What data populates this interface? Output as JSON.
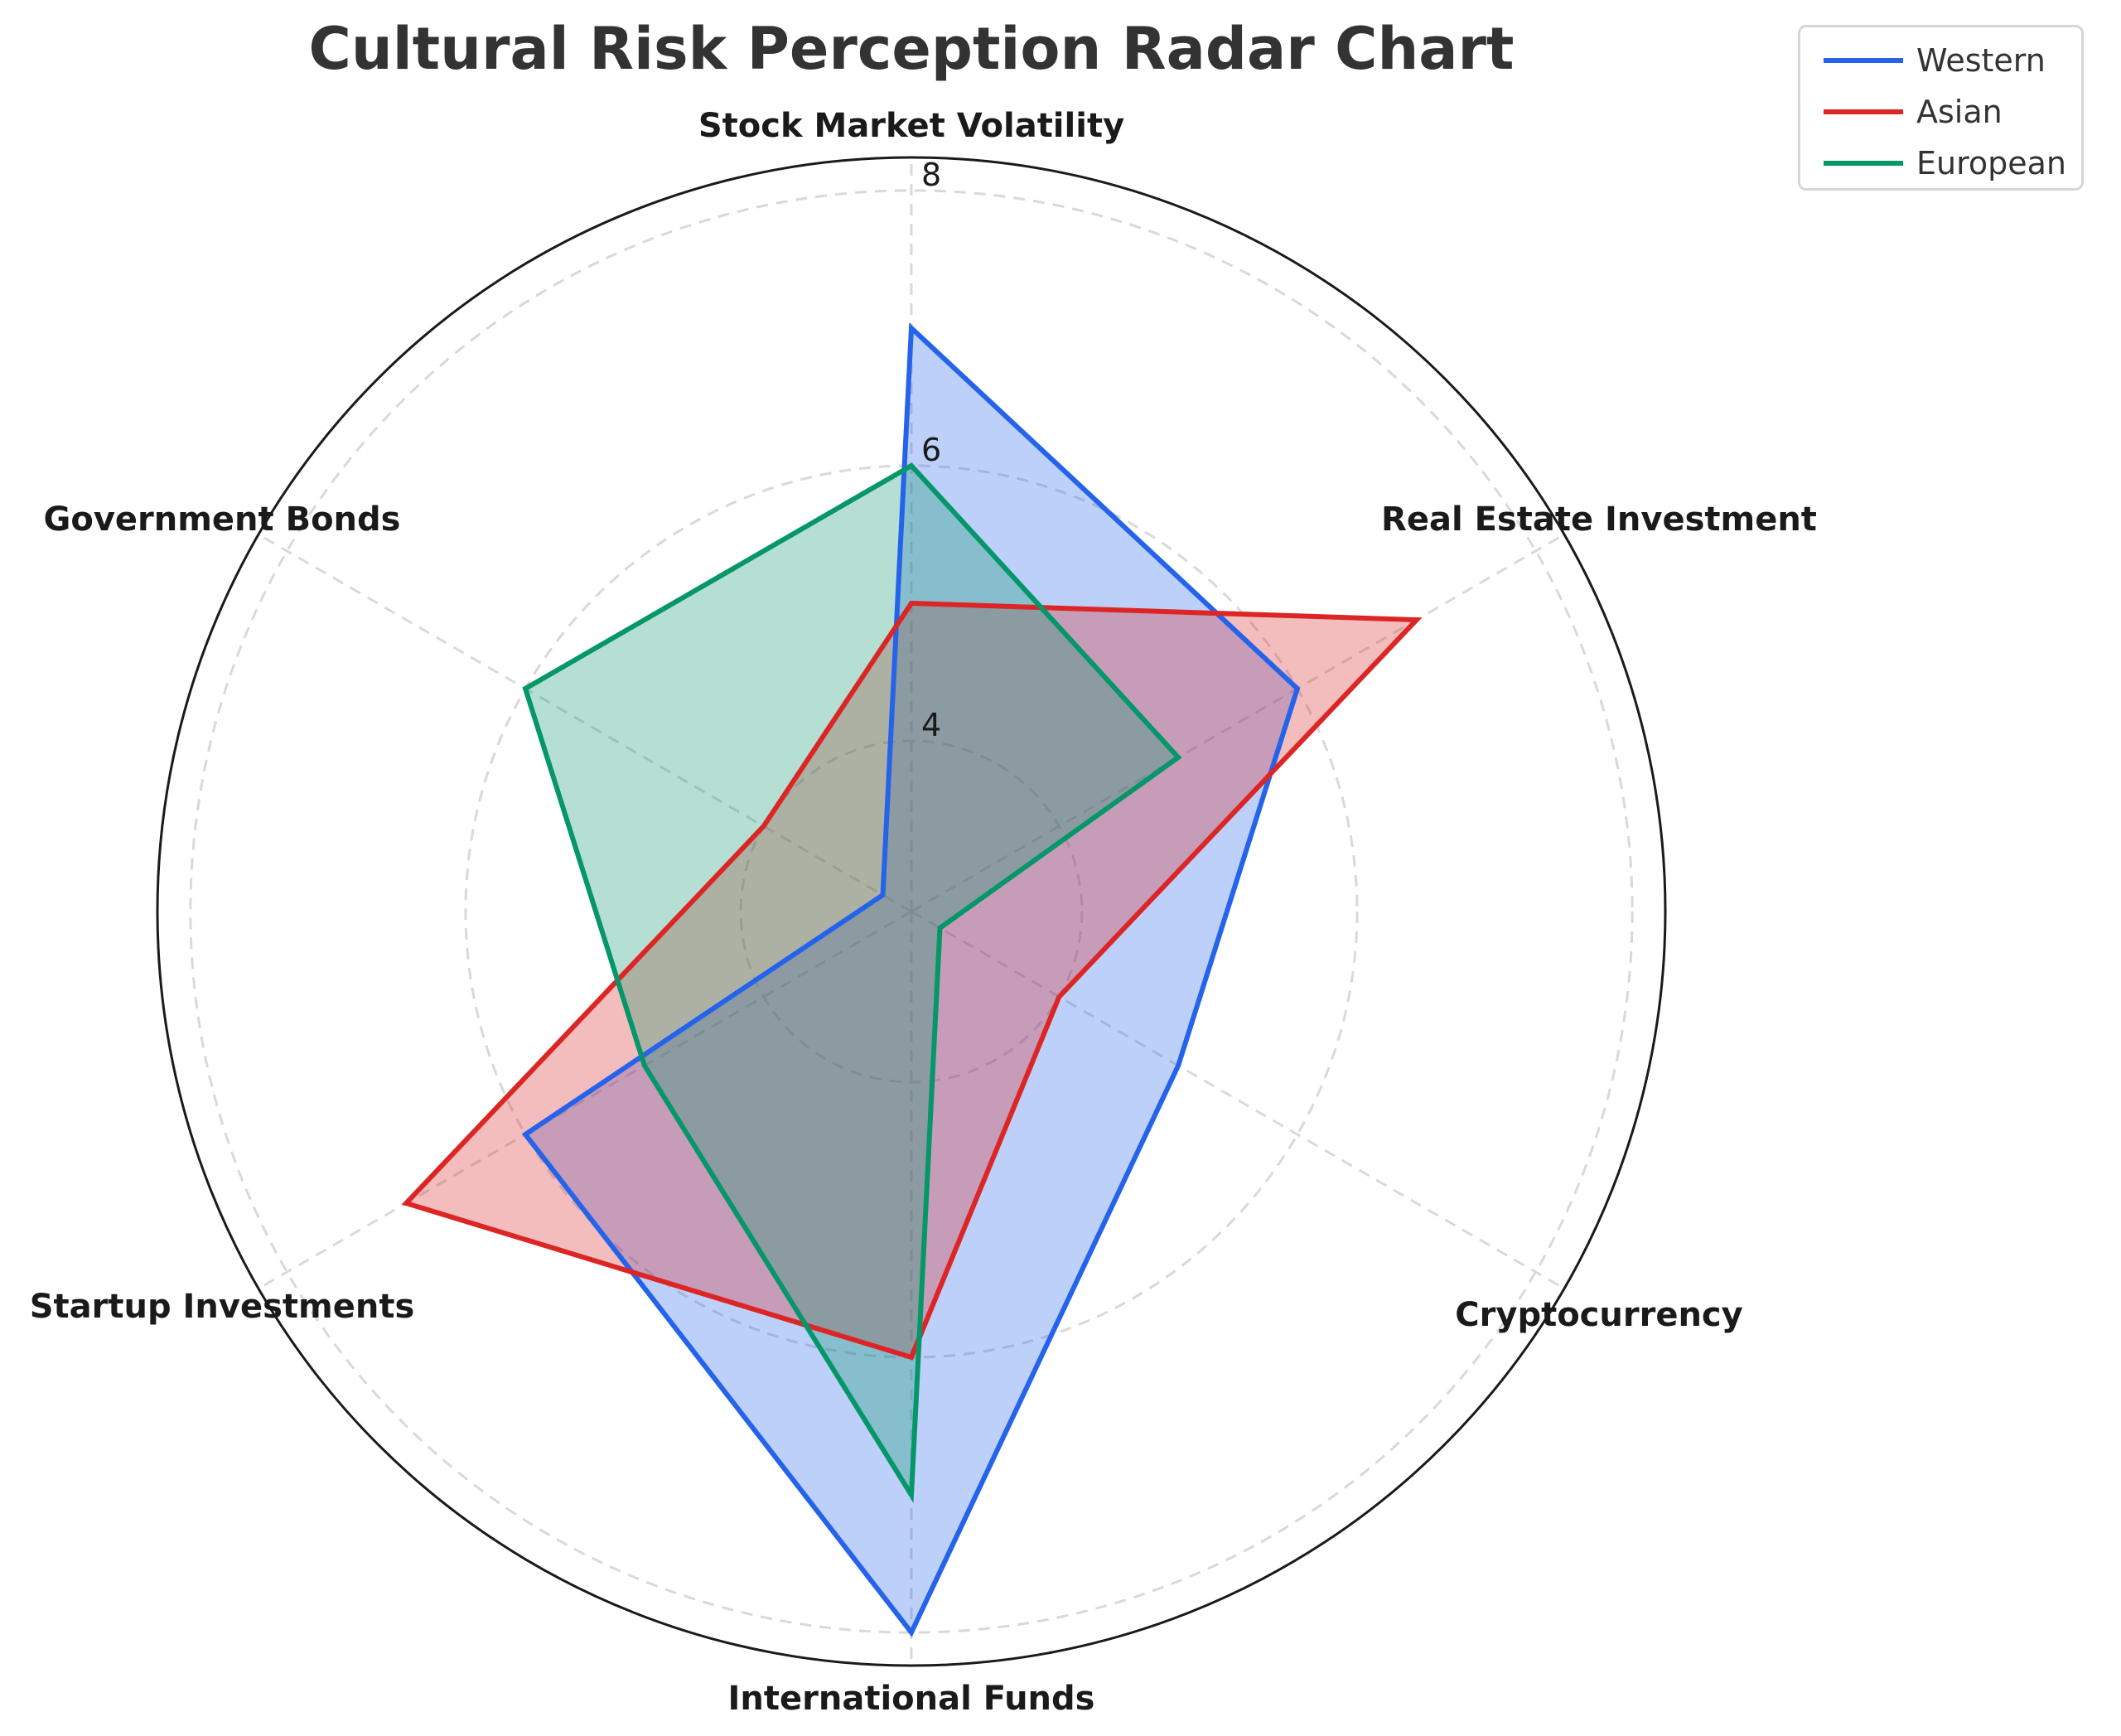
{
  "title": "Cultural Risk Perception Radar Chart",
  "legend": {
    "items": [
      {
        "label": "Western",
        "color": "#2563eb"
      },
      {
        "label": "Asian",
        "color": "#dc2626"
      },
      {
        "label": "European",
        "color": "#059669"
      }
    ]
  },
  "radial_ticks": [
    "4",
    "6",
    "8"
  ],
  "chart_data": {
    "type": "radar",
    "title": "Cultural Risk Perception Radar Chart",
    "categories": [
      "Stock Market Volatility",
      "Real Estate Investment",
      "Cryptocurrency",
      "International Funds",
      "Startup Investments",
      "Government Bonds"
    ],
    "series": [
      {
        "name": "Western",
        "color": "#2563eb",
        "values": [
          7,
          6,
          5,
          8,
          6,
          3
        ]
      },
      {
        "name": "Asian",
        "color": "#dc2626",
        "values": [
          5,
          7,
          4,
          6,
          7,
          4
        ]
      },
      {
        "name": "European",
        "color": "#059669",
        "values": [
          6,
          5,
          3,
          7,
          5,
          6
        ]
      }
    ],
    "radial_ticks": [
      4,
      6,
      8
    ],
    "rlim": [
      2.76,
      8.24
    ],
    "grid": true,
    "legend_position": "upper right (outside)",
    "fill_alpha": 0.3
  }
}
